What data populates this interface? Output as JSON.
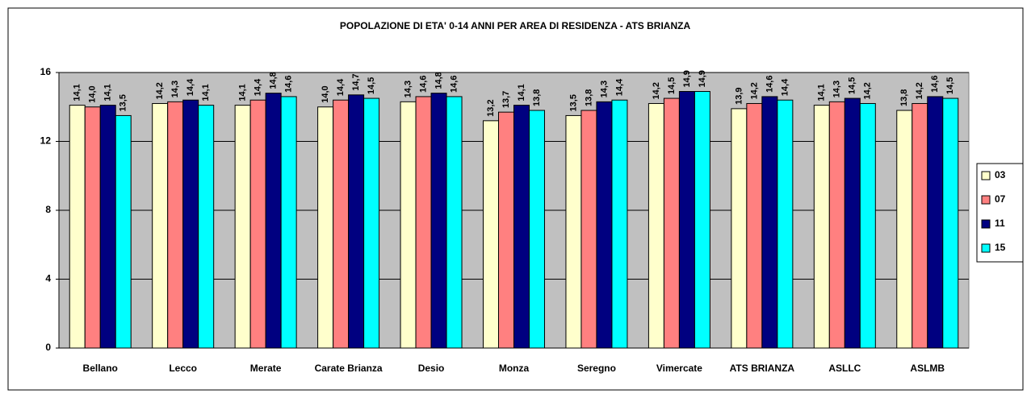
{
  "chart_data": {
    "type": "bar",
    "title": "POPOLAZIONE DI ETA' 0-14 ANNI PER AREA DI RESIDENZA - ATS  BRIANZA",
    "categories": [
      "Bellano",
      "Lecco",
      "Merate",
      "Carate Brianza",
      "Desio",
      "Monza",
      "Seregno",
      "Vimercate",
      "ATS BRIANZA",
      "ASLLC",
      "ASLMB"
    ],
    "series": [
      {
        "name": "03",
        "color": "#ffffcc",
        "values": [
          14.1,
          14.2,
          14.1,
          14.0,
          14.3,
          13.2,
          13.5,
          14.2,
          13.9,
          14.1,
          13.8
        ],
        "value_labels": [
          "14,1",
          "14,2",
          "14,1",
          "14,0",
          "14,3",
          "13,2",
          "13,5",
          "14,2",
          "13,9",
          "14,1",
          "13,8"
        ]
      },
      {
        "name": "07",
        "color": "#ff8080",
        "values": [
          14.0,
          14.3,
          14.4,
          14.4,
          14.6,
          13.7,
          13.8,
          14.5,
          14.2,
          14.3,
          14.2
        ],
        "value_labels": [
          "14,0",
          "14,3",
          "14,4",
          "14,4",
          "14,6",
          "13,7",
          "13,8",
          "14,5",
          "14,2",
          "14,3",
          "14,2"
        ]
      },
      {
        "name": "11",
        "color": "#000080",
        "values": [
          14.1,
          14.4,
          14.8,
          14.7,
          14.8,
          14.1,
          14.3,
          14.9,
          14.6,
          14.5,
          14.6
        ],
        "value_labels": [
          "14,1",
          "14,4",
          "14,8",
          "14,7",
          "14,8",
          "14,1",
          "14,3",
          "14,9",
          "14,6",
          "14,5",
          "14,6"
        ]
      },
      {
        "name": "15",
        "color": "#00ffff",
        "values": [
          13.5,
          14.1,
          14.6,
          14.5,
          14.6,
          13.8,
          14.4,
          14.9,
          14.4,
          14.2,
          14.5
        ],
        "value_labels": [
          "13,5",
          "14,1",
          "14,6",
          "14,5",
          "14,6",
          "13,8",
          "14,4",
          "14,9",
          "14,4",
          "14,2",
          "14,5"
        ]
      }
    ],
    "ylim": [
      0,
      16
    ],
    "yticks": [
      0,
      4,
      8,
      12,
      16
    ],
    "grid": true,
    "legend": "right"
  }
}
